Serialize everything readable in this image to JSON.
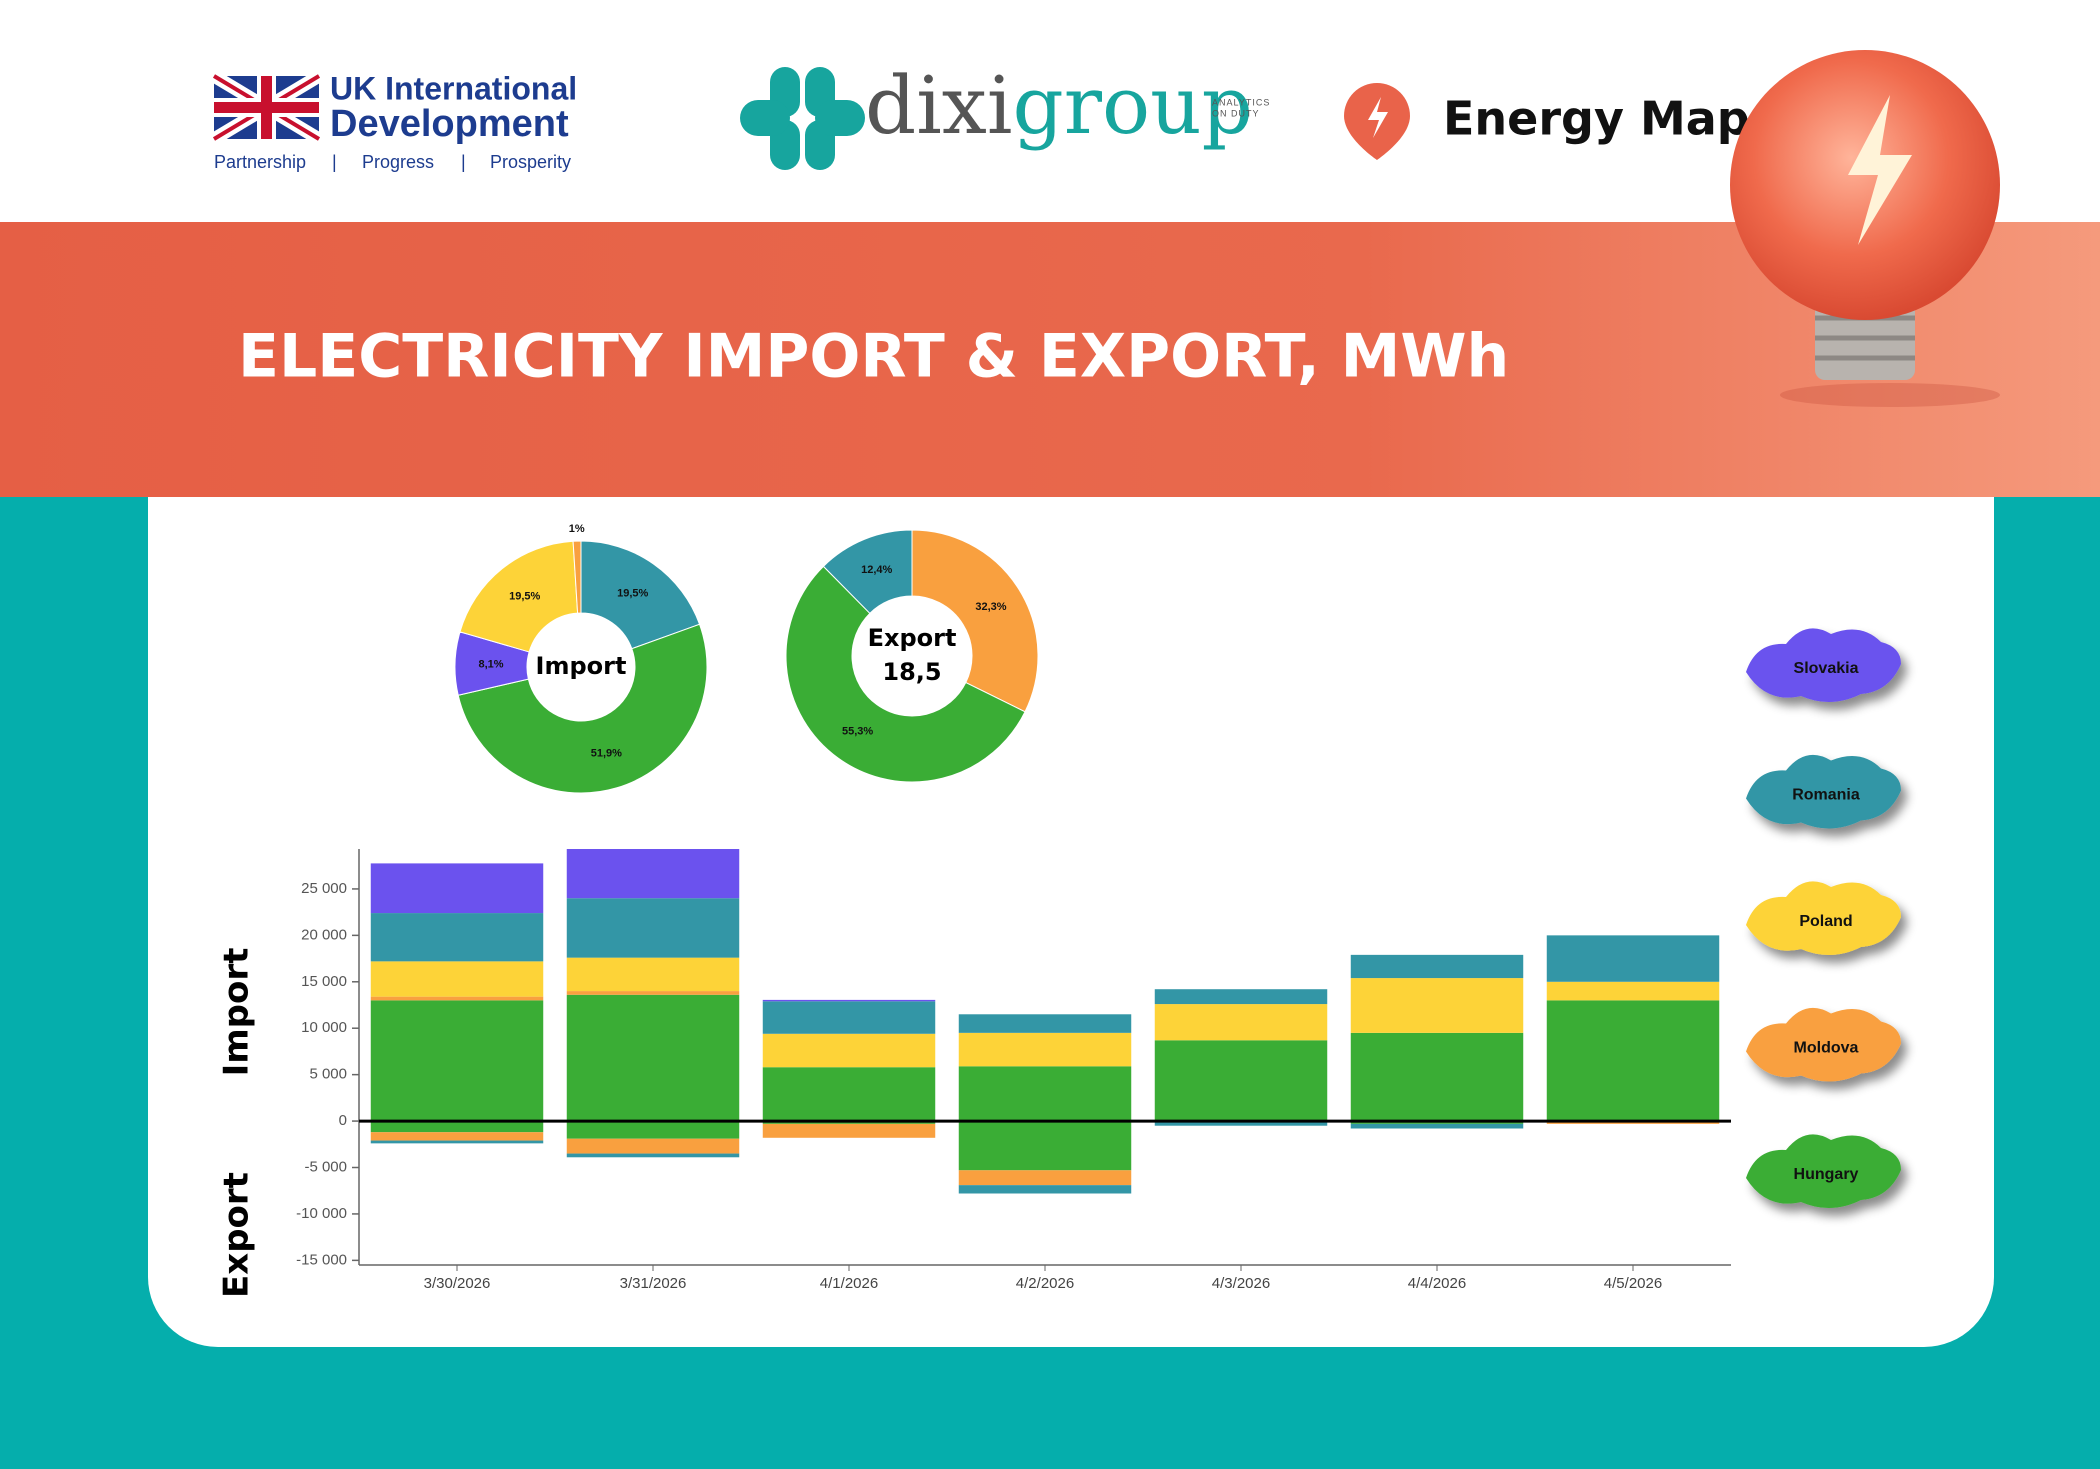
{
  "header": {
    "uk": {
      "line1": "UK International",
      "line2": "Development",
      "tagline": [
        "Partnership",
        "|",
        "Progress",
        "|",
        "Prosperity"
      ]
    },
    "dixigroup": {
      "name": [
        "dixi",
        "group"
      ],
      "slogan": [
        "ANALYTICS",
        "ON DUTY"
      ]
    },
    "energy_map": "Energy Map"
  },
  "title": "ELECTRICITY IMPORT & EXPORT, MWh",
  "chart_data": [
    {
      "type": "pie",
      "center_text": [
        "Import"
      ],
      "values": [
        19.5,
        51.9,
        8.1,
        19.5,
        1
      ],
      "value_labels": [
        "19,5%",
        "51,9%",
        "8,1%",
        "19,5%",
        "1%"
      ],
      "colors": [
        "#3396a6",
        "#3aad35",
        "#6b52ee",
        "#fdd338",
        "#f9a03f"
      ]
    },
    {
      "type": "pie",
      "center_text": [
        "Export",
        "18,5"
      ],
      "values": [
        32.3,
        55.3,
        12.4
      ],
      "value_labels": [
        "32,3%",
        "55,3%",
        "12,4%"
      ],
      "colors": [
        "#f9a03f",
        "#3aad35",
        "#3396a6"
      ]
    },
    {
      "type": "bar",
      "stacked": true,
      "y_label_top": "Import",
      "y_label_bottom": "Export",
      "categories": [
        "3/30/2026",
        "3/31/2026",
        "4/1/2026",
        "4/2/2026",
        "4/3/2026",
        "4/4/2026",
        "4/5/2026"
      ],
      "series": [
        {
          "name": "Hungary",
          "color": "#3aad35",
          "values": [
            13000,
            13600,
            5800,
            5900,
            8700,
            9500,
            13000
          ],
          "export_values": [
            -1200,
            -1900,
            -300,
            -5300,
            0,
            -300,
            0
          ]
        },
        {
          "name": "Moldova",
          "color": "#f9a03f",
          "values": [
            400,
            400,
            0,
            0,
            0,
            0,
            0
          ],
          "export_values": [
            -900,
            -1600,
            -1500,
            -1600,
            0,
            0,
            -300
          ]
        },
        {
          "name": "Poland",
          "color": "#fdd338",
          "values": [
            3800,
            3600,
            3600,
            3600,
            3900,
            5900,
            2000
          ],
          "export_values": [
            0,
            0,
            0,
            0,
            0,
            0,
            0
          ]
        },
        {
          "name": "Romania",
          "color": "#3396a6",
          "values": [
            5200,
            6400,
            3500,
            2000,
            1600,
            2500,
            5000
          ],
          "export_values": [
            -300,
            -400,
            0,
            -900,
            -500,
            -500,
            0
          ]
        },
        {
          "name": "Slovakia",
          "color": "#6b52ee",
          "values": [
            5350,
            5300,
            150,
            0,
            0,
            0,
            0
          ],
          "export_values": [
            0,
            0,
            0,
            0,
            0,
            0,
            0
          ]
        }
      ],
      "ylim": [
        -15500,
        29300
      ],
      "yticks": [
        {
          "value": -15000,
          "label": "-15 000"
        },
        {
          "value": -10000,
          "label": "-10 000"
        },
        {
          "value": -5000,
          "label": "-5 000"
        },
        0,
        {
          "value": 5000,
          "label": "5 000"
        },
        {
          "value": 10000,
          "label": "10 000"
        },
        {
          "value": 15000,
          "label": "15 000"
        },
        {
          "value": 20000,
          "label": "20 000"
        },
        {
          "value": 25000,
          "label": "25 000"
        }
      ]
    }
  ]
}
